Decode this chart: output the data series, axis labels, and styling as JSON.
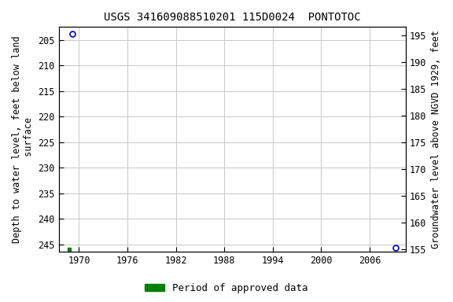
{
  "title": "USGS 341609088510201 115D0024  PONTOTOC",
  "ylabel_left": "Depth to water level, feet below land\n surface",
  "ylabel_right": "Groundwater level above NGVD 1929, feet",
  "ylim_left": [
    246.5,
    202.5
  ],
  "ylim_right": [
    154.5,
    196.5
  ],
  "xlim": [
    1967.5,
    2010.5
  ],
  "yticks_left": [
    205,
    210,
    215,
    220,
    225,
    230,
    235,
    240,
    245
  ],
  "yticks_right": [
    155,
    160,
    165,
    170,
    175,
    180,
    185,
    190,
    195
  ],
  "xticks": [
    1970,
    1976,
    1982,
    1988,
    1994,
    2000,
    2006
  ],
  "data_points": [
    {
      "year": 1969.2,
      "depth": 203.8
    },
    {
      "year": 2009.2,
      "depth": 245.7
    }
  ],
  "green_square_x": 1968.8,
  "green_square_depth": 246.0,
  "point_color": "#0000cc",
  "point_facecolor": "#ffffff",
  "point_marker": "o",
  "point_size": 5,
  "grid_color": "#cccccc",
  "background_color": "#ffffff",
  "title_fontsize": 10,
  "label_fontsize": 8.5,
  "tick_fontsize": 8.5,
  "legend_label": "Period of approved data",
  "legend_color": "#008000",
  "legend_fontsize": 9
}
